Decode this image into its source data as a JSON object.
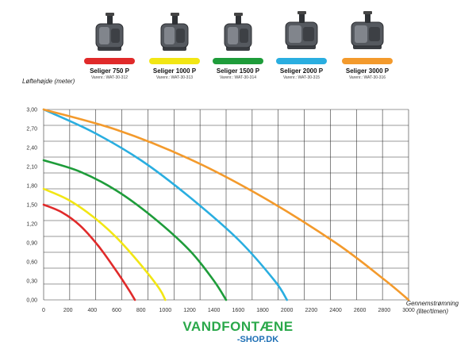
{
  "chart_data": {
    "type": "line",
    "title": "",
    "ylabel": "Løftehøjde (meter)",
    "xlabel_lines": [
      "Gennemstrømning",
      "(liter/timen)"
    ],
    "xlim": [
      0,
      3000
    ],
    "ylim": [
      0,
      3.0
    ],
    "x_ticks": [
      0,
      200,
      400,
      600,
      800,
      1000,
      1200,
      1400,
      1600,
      1800,
      2000,
      2200,
      2400,
      2600,
      2800,
      3000
    ],
    "y_ticks": [
      "0,00",
      "0,30",
      "0,60",
      "0,90",
      "1,20",
      "1,50",
      "1,80",
      "2,10",
      "2,40",
      "2,70",
      "3,00"
    ],
    "grid": true,
    "legend_placement": "top",
    "series": [
      {
        "name": "Seliger 750 P",
        "code": "Varenr.: WAT-30-312",
        "color": "#e02a2a",
        "x": [
          0,
          150,
          300,
          450,
          600,
          700,
          750
        ],
        "y": [
          1.5,
          1.38,
          1.17,
          0.85,
          0.45,
          0.16,
          0.0
        ]
      },
      {
        "name": "Seliger 1000 P",
        "code": "Varenr.: WAT-30-313",
        "color": "#f2e614",
        "x": [
          0,
          200,
          400,
          600,
          800,
          950,
          1000
        ],
        "y": [
          1.75,
          1.58,
          1.32,
          0.98,
          0.55,
          0.18,
          0.0
        ]
      },
      {
        "name": "Seliger 1500 P",
        "code": "Varenr.: WAT-30-314",
        "color": "#1e9c3a",
        "x": [
          0,
          300,
          600,
          900,
          1200,
          1400,
          1500
        ],
        "y": [
          2.2,
          2.02,
          1.72,
          1.3,
          0.78,
          0.3,
          0.0
        ]
      },
      {
        "name": "Seliger 2000 P",
        "code": "Varenr.: WAT-30-315",
        "color": "#2aaee0",
        "x": [
          0,
          400,
          800,
          1200,
          1600,
          1900,
          2000
        ],
        "y": [
          3.0,
          2.65,
          2.2,
          1.62,
          0.95,
          0.3,
          0.0
        ]
      },
      {
        "name": "Seliger 3000 P",
        "code": "Varenr.: WAT-30-316",
        "color": "#f39a2c",
        "x": [
          0,
          600,
          1200,
          1800,
          2400,
          2800,
          3000
        ],
        "y": [
          3.0,
          2.68,
          2.22,
          1.62,
          0.9,
          0.32,
          0.0
        ]
      }
    ]
  },
  "brand": {
    "main": "VANDFONTÆNE",
    "sub": "-SHOP.DK"
  },
  "icons": {
    "pump": "pump-icon"
  }
}
